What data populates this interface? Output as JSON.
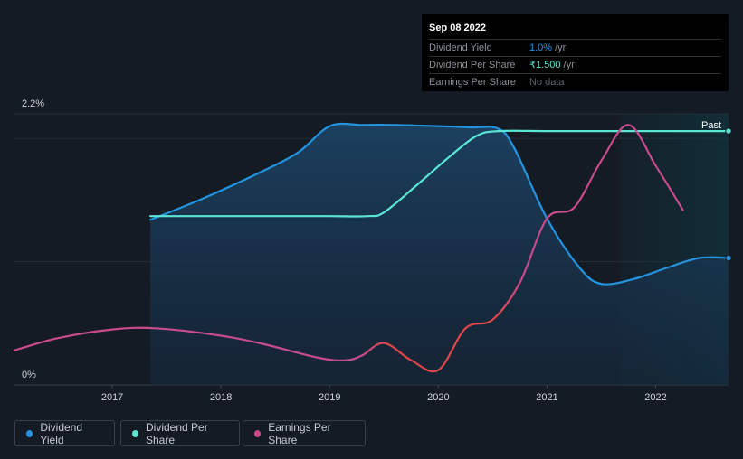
{
  "tooltip": {
    "date": "Sep 08 2022",
    "rows": [
      {
        "label": "Dividend Yield",
        "value": "1.0%",
        "unit": "/yr"
      },
      {
        "label": "Dividend Per Share",
        "value": "₹1.500",
        "unit": "/yr"
      },
      {
        "label": "Earnings Per Share",
        "value": "No data",
        "unit": ""
      }
    ]
  },
  "legend": [
    {
      "label": "Dividend Yield",
      "color": "#2394df"
    },
    {
      "label": "Dividend Per Share",
      "color": "#5ae6d4"
    },
    {
      "label": "Earnings Per Share",
      "color": "#c94a8d"
    }
  ],
  "chart_data": {
    "type": "line",
    "y_ticks": [
      "2.2%",
      "0%"
    ],
    "ylim": [
      0,
      2.2
    ],
    "xlim": [
      2016.1,
      2022.67
    ],
    "x_ticks": [
      "2017",
      "2018",
      "2019",
      "2020",
      "2021",
      "2022"
    ],
    "past_label": "Past",
    "past_start": 2021.67,
    "series": [
      {
        "name": "Dividend Yield",
        "color": "#2394df",
        "x": [
          2017.35,
          2017.8,
          2018.3,
          2018.7,
          2019.0,
          2019.3,
          2019.6,
          2020.0,
          2020.3,
          2020.55,
          2020.7,
          2021.0,
          2021.3,
          2021.5,
          2021.8,
          2022.1,
          2022.4,
          2022.67
        ],
        "y": [
          1.34,
          1.5,
          1.7,
          1.88,
          2.1,
          2.11,
          2.11,
          2.1,
          2.09,
          2.08,
          1.92,
          1.35,
          0.95,
          0.82,
          0.86,
          0.95,
          1.03,
          1.03
        ]
      },
      {
        "name": "Dividend Per Share",
        "color": "#5ae6d4",
        "x": [
          2017.35,
          2018.0,
          2018.7,
          2019.0,
          2019.35,
          2019.5,
          2019.8,
          2020.1,
          2020.35,
          2020.55,
          2021.0,
          2021.5,
          2022.0,
          2022.67
        ],
        "y": [
          1.37,
          1.37,
          1.37,
          1.37,
          1.37,
          1.4,
          1.62,
          1.85,
          2.02,
          2.06,
          2.06,
          2.06,
          2.06,
          2.06
        ]
      },
      {
        "name": "Earnings Per Share",
        "color": "#c94a8d",
        "x": [
          2016.1,
          2016.5,
          2017.0,
          2017.4,
          2018.0,
          2018.4,
          2018.9,
          2019.15,
          2019.3,
          2019.5,
          2019.75,
          2020.0,
          2020.25,
          2020.5,
          2020.75,
          2021.0,
          2021.25,
          2021.5,
          2021.75,
          2022.0,
          2022.25
        ],
        "y": [
          0.28,
          0.38,
          0.45,
          0.46,
          0.4,
          0.33,
          0.22,
          0.2,
          0.24,
          0.34,
          0.2,
          0.12,
          0.46,
          0.53,
          0.83,
          1.35,
          1.44,
          1.82,
          2.11,
          1.78,
          1.42
        ]
      }
    ]
  }
}
